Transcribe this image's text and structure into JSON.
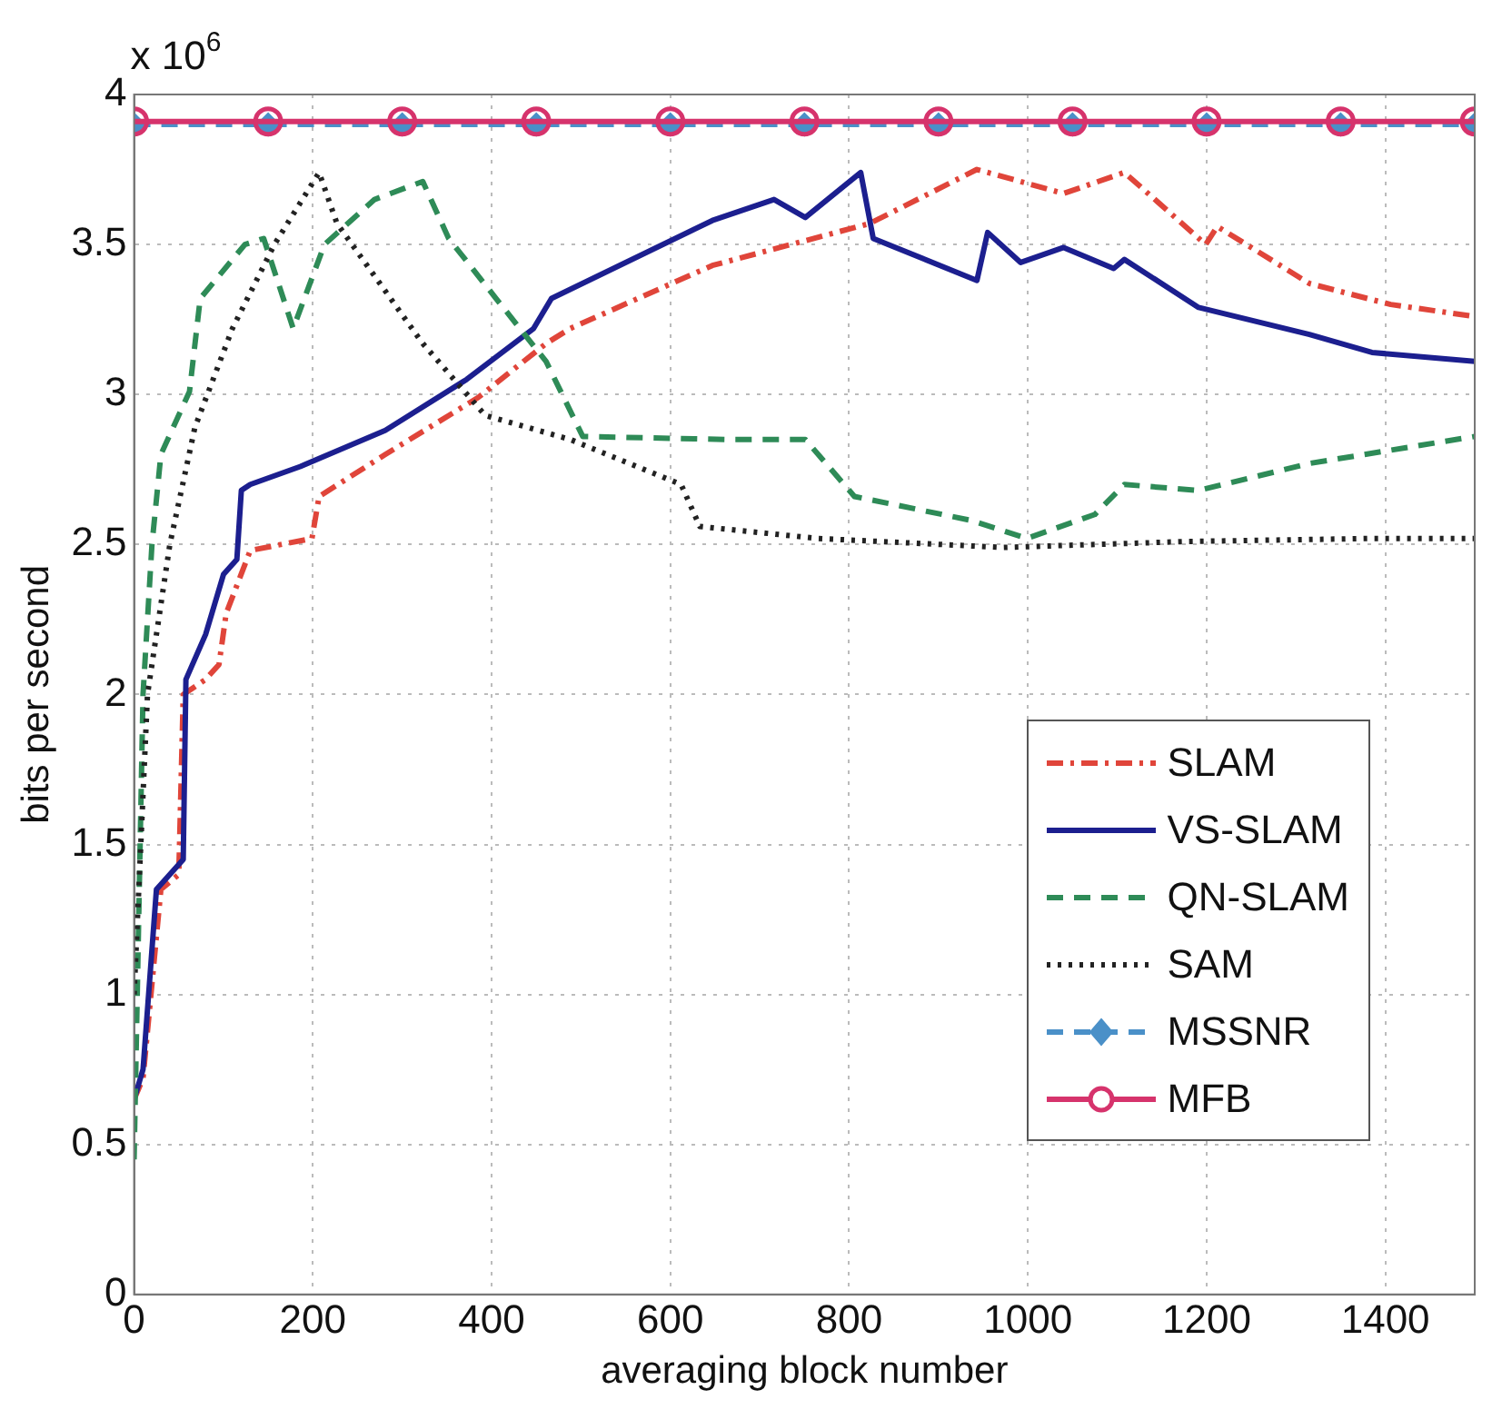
{
  "chart_data": {
    "type": "line",
    "xlabel": "averaging block number",
    "ylabel": "bits per second",
    "annotations": [
      "x 10$^{6}$"
    ],
    "xlim": [
      0,
      1500
    ],
    "xticks": [
      0,
      200,
      400,
      600,
      800,
      1000,
      1200,
      1400
    ],
    "ylim": [
      0,
      4
    ],
    "yticks": [
      0,
      0.5,
      1,
      1.5,
      2,
      2.5,
      3,
      3.5,
      4
    ],
    "grid": true,
    "legend": "bottom right",
    "series": [
      {
        "name": "SLAM",
        "color": "#e0453a",
        "line_style": "dashdot",
        "marker": "none",
        "x": [
          0,
          10,
          30,
          50,
          55,
          80,
          95,
          103,
          130,
          199,
          207,
          281,
          385,
          461,
          488,
          647,
          823,
          943,
          1040,
          1108,
          1199,
          1212,
          1315,
          1406,
          1500
        ],
        "values": [
          0.65,
          0.72,
          1.35,
          1.4,
          2.0,
          2.05,
          2.1,
          2.27,
          2.48,
          2.52,
          2.66,
          2.8,
          2.99,
          3.17,
          3.22,
          3.43,
          3.57,
          3.75,
          3.67,
          3.74,
          3.5,
          3.56,
          3.37,
          3.3,
          3.26
        ]
      },
      {
        "name": "VS-SLAM",
        "color": "#1c1f8f",
        "line_style": "solid",
        "marker": "none",
        "x": [
          0,
          10,
          25,
          55,
          58,
          80,
          100,
          115,
          120,
          130,
          186,
          281,
          372,
          447,
          467,
          647,
          716,
          751,
          813,
          827,
          943,
          955,
          992,
          1040,
          1096,
          1108,
          1191,
          1315,
          1385,
          1500
        ],
        "values": [
          0.65,
          0.75,
          1.35,
          1.45,
          2.05,
          2.2,
          2.4,
          2.45,
          2.68,
          2.7,
          2.76,
          2.88,
          3.05,
          3.22,
          3.32,
          3.58,
          3.65,
          3.59,
          3.74,
          3.52,
          3.38,
          3.54,
          3.44,
          3.49,
          3.42,
          3.45,
          3.29,
          3.2,
          3.14,
          3.11
        ]
      },
      {
        "name": "QN-SLAM",
        "color": "#2e8b57",
        "line_style": "dashed",
        "marker": "none",
        "x": [
          0,
          10,
          20,
          30,
          62,
          74,
          124,
          145,
          178,
          213,
          269,
          323,
          352,
          405,
          461,
          502,
          662,
          751,
          806,
          937,
          999,
          1075,
          1108,
          1191,
          1315,
          1500
        ],
        "values": [
          0.45,
          2.0,
          2.5,
          2.8,
          3.01,
          3.32,
          3.5,
          3.52,
          3.22,
          3.5,
          3.65,
          3.71,
          3.52,
          3.32,
          3.11,
          2.86,
          2.85,
          2.85,
          2.66,
          2.58,
          2.52,
          2.6,
          2.7,
          2.68,
          2.77,
          2.86
        ]
      },
      {
        "name": "SAM",
        "color": "#222222",
        "line_style": "dotted",
        "marker": "none",
        "x": [
          0,
          15,
          40,
          68,
          110,
          157,
          207,
          227,
          323,
          393,
          488,
          612,
          633,
          765,
          972,
          1179,
          1385,
          1500
        ],
        "values": [
          1.0,
          2.0,
          2.5,
          2.89,
          3.22,
          3.5,
          3.74,
          3.57,
          3.17,
          2.93,
          2.85,
          2.7,
          2.56,
          2.52,
          2.49,
          2.51,
          2.52,
          2.52
        ]
      },
      {
        "name": "MSSNR",
        "color": "#4a90c8",
        "line_style": "dashed",
        "marker": "diamond",
        "x": [
          0,
          150,
          300,
          450,
          600,
          750,
          900,
          1050,
          1200,
          1350,
          1500
        ],
        "values": [
          3.9,
          3.9,
          3.9,
          3.9,
          3.9,
          3.9,
          3.9,
          3.9,
          3.9,
          3.9,
          3.9
        ]
      },
      {
        "name": "MFB",
        "color": "#d6336c",
        "line_style": "solid",
        "marker": "circle",
        "x": [
          0,
          150,
          300,
          450,
          600,
          750,
          900,
          1050,
          1200,
          1350,
          1500
        ],
        "values": [
          3.91,
          3.91,
          3.91,
          3.91,
          3.91,
          3.91,
          3.91,
          3.91,
          3.91,
          3.91,
          3.91
        ]
      }
    ]
  }
}
